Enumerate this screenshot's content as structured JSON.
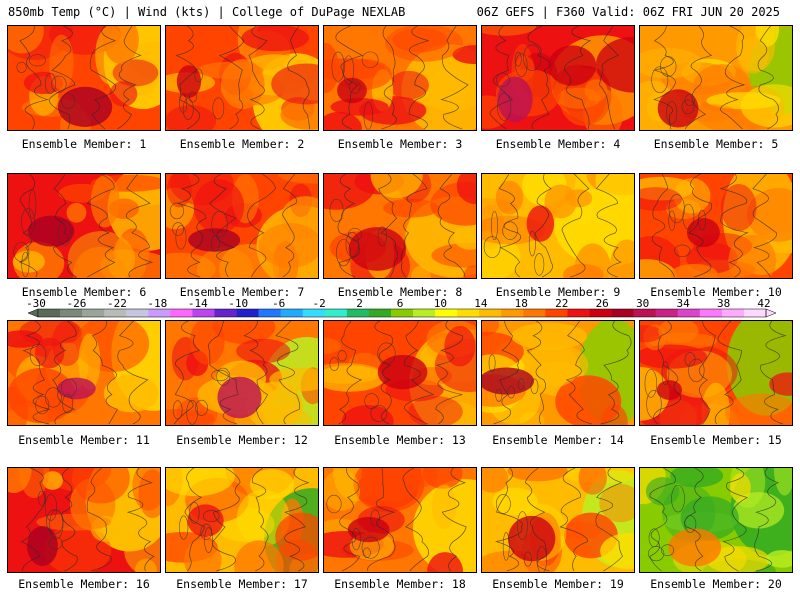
{
  "header": {
    "left_title": "850mb Temp (°C) | Wind (kts) | College of DuPage NEXLAB",
    "right_title": "06Z GEFS | F360 Valid: 06Z FRI JUN 20 2025"
  },
  "colorbar": {
    "labels": [
      "-30",
      "-26",
      "-22",
      "-18",
      "-14",
      "-10",
      "-6",
      "-2",
      "2",
      "6",
      "10",
      "14",
      "18",
      "22",
      "26",
      "30",
      "34",
      "38",
      "42"
    ],
    "colors": [
      "#5a6a5a",
      "#7a8a7a",
      "#9aa49a",
      "#b8bcb8",
      "#c6c6e0",
      "#cc99ff",
      "#ff66ff",
      "#bb44ee",
      "#6622cc",
      "#2222cc",
      "#2277ff",
      "#22aaff",
      "#33ddff",
      "#33eecc",
      "#22bb66",
      "#33aa22",
      "#88cc00",
      "#bbee22",
      "#ffff00",
      "#ffdd00",
      "#ffbb00",
      "#ff9900",
      "#ff7700",
      "#ff4400",
      "#ee1111",
      "#cc0011",
      "#aa0022",
      "#bb1155",
      "#cc2288",
      "#dd44cc",
      "#ff77ff",
      "#ffaaff",
      "#ffd8ff"
    ]
  },
  "panels": [
    {
      "label": "Ensemble Member: 1",
      "palette": [
        "#ff4400",
        "#ee1111",
        "#ff7700",
        "#ffbb00"
      ],
      "hot": "#aa0022",
      "cool": "#ffdd00"
    },
    {
      "label": "Ensemble Member: 2",
      "palette": [
        "#ff4400",
        "#ff7700",
        "#ee1111",
        "#ffbb00"
      ],
      "hot": "#cc0011",
      "cool": "#ffdd00"
    },
    {
      "label": "Ensemble Member: 3",
      "palette": [
        "#ff7700",
        "#ff4400",
        "#ee1111",
        "#ffbb00"
      ],
      "hot": "#cc0011",
      "cool": "#ffbb00"
    },
    {
      "label": "Ensemble Member: 4",
      "palette": [
        "#ee1111",
        "#cc0011",
        "#ff4400",
        "#ff7700"
      ],
      "hot": "#bb1155",
      "cool": "#ff9900"
    },
    {
      "label": "Ensemble Member: 5",
      "palette": [
        "#ff9900",
        "#ffbb00",
        "#ff7700",
        "#ffdd00"
      ],
      "hot": "#cc0011",
      "cool": "#88cc00"
    },
    {
      "label": "Ensemble Member: 6",
      "palette": [
        "#ee1111",
        "#ff4400",
        "#ff7700",
        "#ffbb00"
      ],
      "hot": "#aa0022",
      "cool": "#ffbb00"
    },
    {
      "label": "Ensemble Member: 7",
      "palette": [
        "#ff4400",
        "#ee1111",
        "#ff7700",
        "#ff9900"
      ],
      "hot": "#aa0022",
      "cool": "#ffbb00"
    },
    {
      "label": "Ensemble Member: 8",
      "palette": [
        "#ff7700",
        "#ff4400",
        "#ee1111",
        "#ffbb00"
      ],
      "hot": "#cc0011",
      "cool": "#ffbb00"
    },
    {
      "label": "Ensemble Member: 9",
      "palette": [
        "#ffbb00",
        "#ff9900",
        "#ff7700",
        "#ffdd00"
      ],
      "hot": "#ee1111",
      "cool": "#ffdd00"
    },
    {
      "label": "Ensemble Member: 10",
      "palette": [
        "#ff4400",
        "#ee1111",
        "#ff7700",
        "#ffbb00"
      ],
      "hot": "#cc0011",
      "cool": "#ffbb00"
    },
    {
      "label": "Ensemble Member: 11",
      "palette": [
        "#ff7700",
        "#ff4400",
        "#ffbb00",
        "#ee1111"
      ],
      "hot": "#bb1155",
      "cool": "#ffdd00"
    },
    {
      "label": "Ensemble Member: 12",
      "palette": [
        "#ff7700",
        "#ff4400",
        "#ffbb00",
        "#ee1111"
      ],
      "hot": "#bb1155",
      "cool": "#bbee22"
    },
    {
      "label": "Ensemble Member: 13",
      "palette": [
        "#ff4400",
        "#ff7700",
        "#ee1111",
        "#ffbb00"
      ],
      "hot": "#cc0011",
      "cool": "#ffbb00"
    },
    {
      "label": "Ensemble Member: 14",
      "palette": [
        "#ff9900",
        "#ffbb00",
        "#ff4400",
        "#ffdd00"
      ],
      "hot": "#aa0022",
      "cool": "#88cc00"
    },
    {
      "label": "Ensemble Member: 15",
      "palette": [
        "#ff4400",
        "#ee1111",
        "#ff7700",
        "#ffbb00"
      ],
      "hot": "#cc0011",
      "cool": "#88cc00"
    },
    {
      "label": "Ensemble Member: 16",
      "palette": [
        "#ee1111",
        "#ff4400",
        "#ff7700",
        "#ffbb00"
      ],
      "hot": "#aa0022",
      "cool": "#ffdd00"
    },
    {
      "label": "Ensemble Member: 17",
      "palette": [
        "#ffbb00",
        "#ffdd00",
        "#ff7700",
        "#ff4400"
      ],
      "hot": "#ee1111",
      "cool": "#33aa22"
    },
    {
      "label": "Ensemble Member: 18",
      "palette": [
        "#ff7700",
        "#ff4400",
        "#ffbb00",
        "#ee1111"
      ],
      "hot": "#cc0011",
      "cool": "#ffdd00"
    },
    {
      "label": "Ensemble Member: 19",
      "palette": [
        "#ffbb00",
        "#ff7700",
        "#ffdd00",
        "#ff4400"
      ],
      "hot": "#cc0011",
      "cool": "#bbee22"
    },
    {
      "label": "Ensemble Member: 20",
      "palette": [
        "#88cc00",
        "#bbee22",
        "#33aa22",
        "#ffdd00"
      ],
      "hot": "#ff7700",
      "cool": "#33aa22"
    }
  ]
}
